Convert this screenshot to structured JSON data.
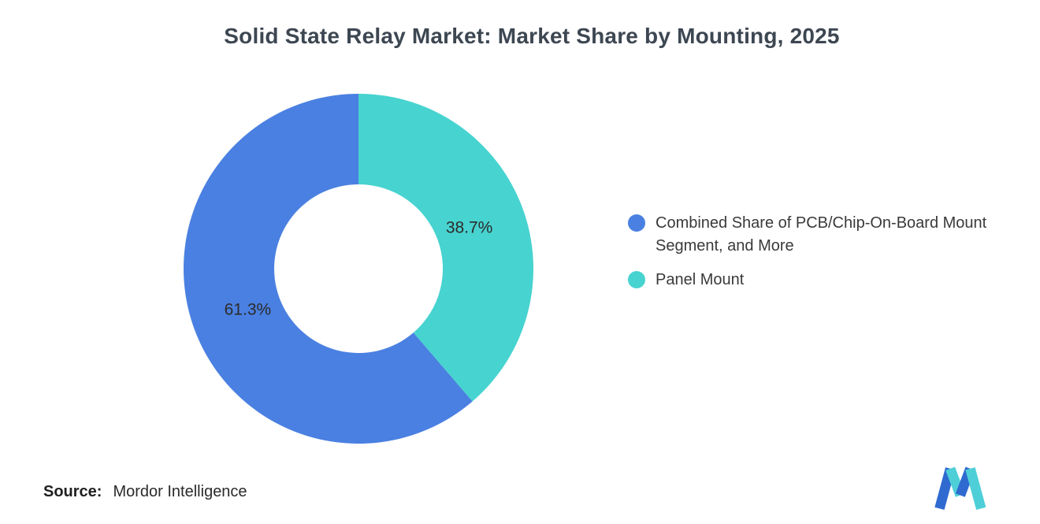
{
  "title": "Solid State Relay Market: Market Share by Mounting, 2025",
  "chart_data": {
    "type": "pie",
    "subtype": "donut",
    "title": "Solid State Relay Market: Market Share by Mounting, 2025",
    "unit": "%",
    "start_angle_deg": 139.32,
    "direction": "clockwise",
    "legend_position": "right",
    "inner_radius_ratio": 0.48,
    "categories": [
      "Combined Share of PCB/Chip-On-Board Mount Segment, and More",
      "Panel Mount"
    ],
    "values": [
      61.3,
      38.7
    ],
    "segments": [
      {
        "label": "Combined Share of PCB/Chip-On-Board Mount Segment, and More",
        "value": 61.3,
        "display": "61.3%",
        "color": "#4A80E1"
      },
      {
        "label": "Panel Mount",
        "value": 38.7,
        "display": "38.7%",
        "color": "#47D3D0"
      }
    ]
  },
  "source": {
    "label": "Source:",
    "value": "Mordor Intelligence"
  },
  "logo": {
    "name": "mordor-intelligence-logo",
    "blue": "#2F6AD0",
    "teal": "#4ECFD8"
  }
}
